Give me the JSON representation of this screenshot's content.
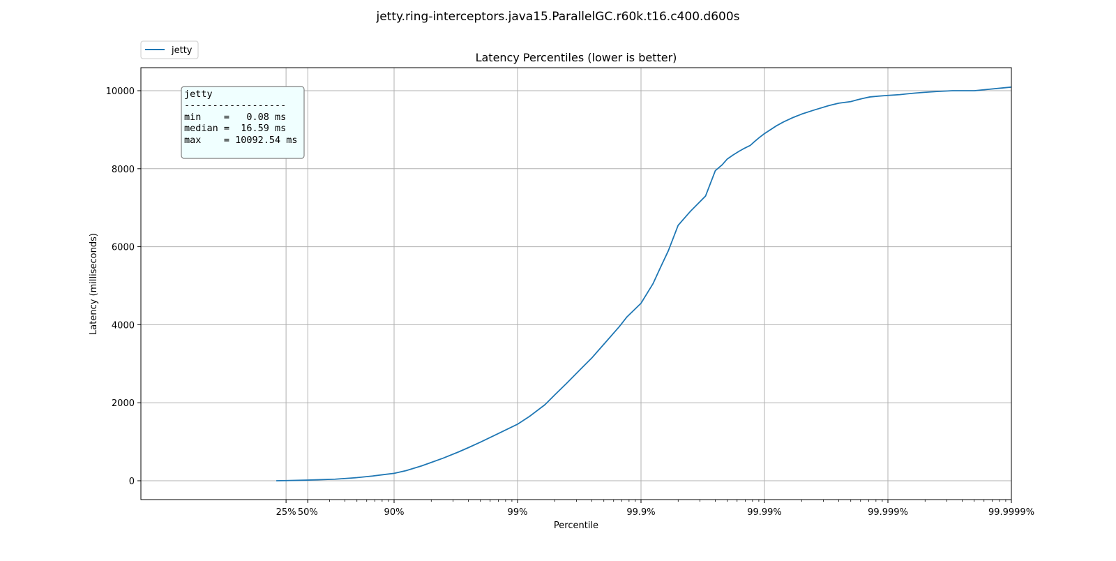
{
  "suptitle": "jetty.ring-interceptors.java15.ParallelGC.r60k.t16.c400.d600s",
  "colors": {
    "line": "#1f77b4",
    "grid": "#b0b0b0",
    "stats_box_fill": "#f0ffff",
    "stats_box_edge": "#808080"
  },
  "legend": {
    "label": "jetty",
    "placement": "upper-left, above axes"
  },
  "stats_box": {
    "lines": [
      "jetty",
      "------------------",
      "min    =   0.08 ms",
      "median =  16.59 ms",
      "max    = 10092.54 ms"
    ]
  },
  "chart_data": {
    "type": "line",
    "title": "Latency Percentiles (lower is better)",
    "xlabel": "Percentile",
    "ylabel": "Latency (milliseconds)",
    "x_scale": "log of 1/(1 - percentile/100)",
    "x_range_percentile": [
      0,
      99.9999
    ],
    "ylim": [
      -500,
      10600
    ],
    "grid": true,
    "x_ticks": [
      "25%",
      "50%",
      "90%",
      "99%",
      "99.9%",
      "99.99%",
      "99.999%",
      "99.9999%"
    ],
    "x_tick_values": [
      25,
      50,
      90,
      99,
      99.9,
      99.99,
      99.999,
      99.9999
    ],
    "y_ticks": [
      0,
      2000,
      4000,
      6000,
      8000,
      10000
    ],
    "y_tick_labels": [
      "0",
      "2000",
      "4000",
      "6000",
      "8000",
      "10000"
    ],
    "series": [
      {
        "name": "jetty",
        "percentile": [
          10,
          25,
          50,
          70,
          80,
          85,
          88,
          90,
          92,
          94,
          95,
          96,
          97,
          97.5,
          98,
          98.5,
          99,
          99.2,
          99.4,
          99.5,
          99.6,
          99.7,
          99.75,
          99.8,
          99.85,
          99.87,
          99.9,
          99.92,
          99.93,
          99.94,
          99.95,
          99.96,
          99.97,
          99.975,
          99.978,
          99.98,
          99.982,
          99.984,
          99.985,
          99.986,
          99.987,
          99.988,
          99.989,
          99.99,
          99.992,
          99.993,
          99.994,
          99.995,
          99.996,
          99.997,
          99.9975,
          99.998,
          99.9982,
          99.9984,
          99.9986,
          99.9988,
          99.999,
          99.9992,
          99.9993,
          99.9994,
          99.9995,
          99.9996,
          99.9997,
          99.9998,
          99.9999
        ],
        "latency_ms": [
          0.5,
          4,
          17,
          40,
          80,
          120,
          160,
          190,
          260,
          380,
          470,
          580,
          740,
          850,
          990,
          1180,
          1450,
          1650,
          1950,
          2200,
          2500,
          2900,
          3150,
          3500,
          3950,
          4200,
          4550,
          5050,
          5450,
          5900,
          6550,
          6900,
          7300,
          7950,
          8100,
          8250,
          8350,
          8450,
          8500,
          8550,
          8600,
          8700,
          8800,
          8900,
          9100,
          9200,
          9300,
          9400,
          9500,
          9620,
          9680,
          9720,
          9760,
          9800,
          9840,
          9860,
          9880,
          9900,
          9920,
          9940,
          9960,
          9980,
          10000,
          10000,
          10092.54
        ]
      }
    ]
  }
}
